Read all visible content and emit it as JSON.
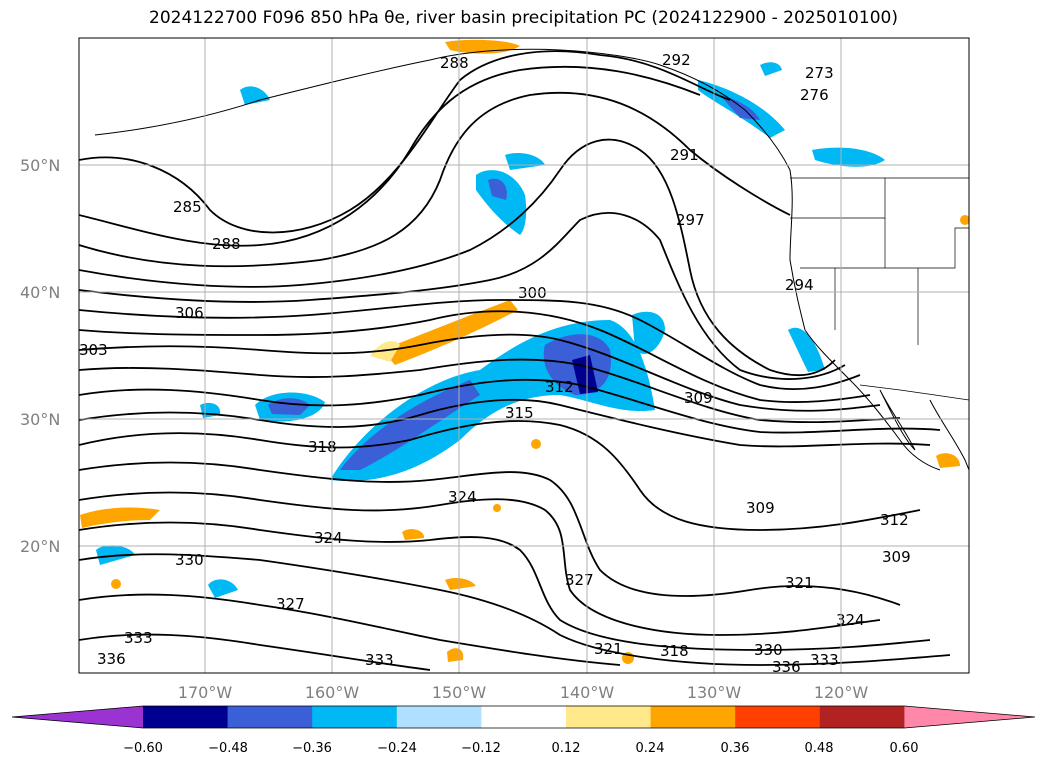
{
  "title": "2024122700 F096 850 hPa θe, river basin precipitation PC (2024122900 - 2025010100)",
  "map": {
    "projection": "PlateCarree",
    "extent_lon": [
      -180,
      -110
    ],
    "extent_lat": [
      10,
      60
    ],
    "lat_labels": [
      "50°N",
      "40°N",
      "30°N",
      "20°N"
    ],
    "lon_labels": [
      "170°W",
      "160°W",
      "150°W",
      "140°W",
      "130°W",
      "120°W"
    ],
    "contour_color": "#000000",
    "gridline_color": "#b0b0b0",
    "theta_e_labels": [
      "285",
      "288",
      "288",
      "291",
      "297",
      "300",
      "306",
      "303",
      "294",
      "273",
      "276",
      "292",
      "312",
      "315",
      "318",
      "309",
      "324",
      "324",
      "330",
      "309",
      "312",
      "309",
      "327",
      "321",
      "324",
      "327",
      "321",
      "318",
      "330",
      "336",
      "333",
      "336",
      "333",
      "333"
    ]
  },
  "colorbar": {
    "ticks": [
      "−0.60",
      "−0.48",
      "−0.36",
      "−0.24",
      "−0.12",
      "0.12",
      "0.24",
      "0.36",
      "0.48",
      "0.60"
    ],
    "extend": "both",
    "colors": [
      "#9b32d2",
      "#000090",
      "#3a5fd6",
      "#00b8f4",
      "#b0e0ff",
      "#ffffff",
      "#ffe98a",
      "#ffa500",
      "#ff4000",
      "#b22222",
      "#ff88aa"
    ]
  }
}
